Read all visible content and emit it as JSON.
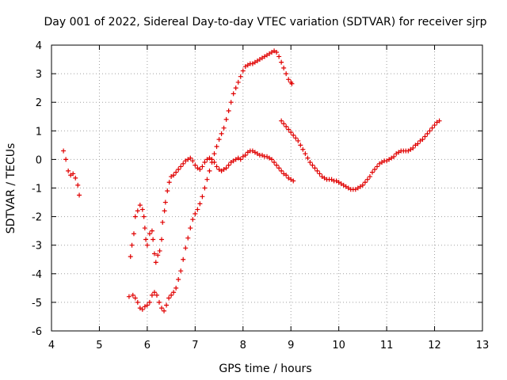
{
  "chart_data": {
    "type": "scatter",
    "title": "Day 001 of 2022, Sidereal Day-to-day VTEC variation (SDTVAR) for receiver sjrp",
    "xlabel": "GPS time / hours",
    "ylabel": "SDTVAR / TECUs",
    "xlim": [
      4,
      13
    ],
    "ylim": [
      -6,
      4
    ],
    "xticks": [
      4,
      5,
      6,
      7,
      8,
      9,
      10,
      11,
      12,
      13
    ],
    "yticks": [
      -6,
      -5,
      -4,
      -3,
      -2,
      -1,
      0,
      1,
      2,
      3,
      4
    ],
    "grid": true,
    "marker": "plus",
    "color": "#e00000",
    "series": [
      {
        "points": [
          [
            4.25,
            0.3
          ],
          [
            4.3,
            0.0
          ],
          [
            4.35,
            -0.4
          ],
          [
            4.4,
            -0.55
          ],
          [
            4.45,
            -0.5
          ],
          [
            4.5,
            -0.65
          ],
          [
            4.55,
            -0.9
          ],
          [
            4.58,
            -1.25
          ]
        ]
      },
      {
        "points": [
          [
            5.65,
            -3.4
          ],
          [
            5.68,
            -3.0
          ],
          [
            5.72,
            -2.6
          ],
          [
            5.75,
            -2.0
          ],
          [
            5.8,
            -1.8
          ],
          [
            5.85,
            -1.6
          ],
          [
            5.9,
            -1.75
          ],
          [
            5.93,
            -2.0
          ],
          [
            5.95,
            -2.4
          ],
          [
            5.97,
            -2.8
          ],
          [
            6.0,
            -3.0
          ],
          [
            6.05,
            -2.6
          ],
          [
            6.1,
            -2.5
          ],
          [
            6.12,
            -2.8
          ],
          [
            6.15,
            -3.3
          ],
          [
            6.18,
            -3.6
          ],
          [
            6.22,
            -3.35
          ],
          [
            6.26,
            -3.2
          ],
          [
            6.3,
            -2.8
          ],
          [
            6.32,
            -2.2
          ],
          [
            6.36,
            -1.8
          ],
          [
            6.38,
            -1.5
          ],
          [
            6.42,
            -1.1
          ],
          [
            6.46,
            -0.8
          ],
          [
            6.5,
            -0.6
          ],
          [
            6.55,
            -0.55
          ],
          [
            6.6,
            -0.45
          ],
          [
            6.65,
            -0.35
          ],
          [
            6.7,
            -0.25
          ],
          [
            6.75,
            -0.15
          ],
          [
            6.8,
            -0.05
          ],
          [
            6.85,
            0.0
          ],
          [
            6.9,
            0.05
          ],
          [
            6.95,
            -0.05
          ],
          [
            7.0,
            -0.2
          ],
          [
            7.05,
            -0.3
          ],
          [
            7.1,
            -0.35
          ],
          [
            7.15,
            -0.25
          ],
          [
            7.2,
            -0.1
          ],
          [
            7.25,
            0.0
          ],
          [
            7.3,
            0.05
          ],
          [
            7.35,
            0.0
          ],
          [
            7.4,
            -0.1
          ],
          [
            7.45,
            -0.25
          ],
          [
            7.5,
            -0.35
          ],
          [
            7.55,
            -0.4
          ],
          [
            7.6,
            -0.35
          ],
          [
            7.65,
            -0.3
          ],
          [
            7.7,
            -0.2
          ],
          [
            7.75,
            -0.1
          ],
          [
            7.8,
            -0.05
          ],
          [
            7.85,
            0.0
          ],
          [
            7.9,
            0.05
          ],
          [
            7.95,
            0.0
          ],
          [
            8.0,
            0.1
          ],
          [
            8.05,
            0.15
          ],
          [
            8.1,
            0.25
          ],
          [
            8.15,
            0.3
          ],
          [
            8.2,
            0.3
          ],
          [
            8.25,
            0.25
          ],
          [
            8.3,
            0.2
          ],
          [
            8.35,
            0.15
          ],
          [
            8.4,
            0.15
          ],
          [
            8.45,
            0.1
          ],
          [
            8.5,
            0.1
          ],
          [
            8.55,
            0.05
          ],
          [
            8.6,
            0.0
          ],
          [
            8.65,
            -0.1
          ],
          [
            8.7,
            -0.2
          ],
          [
            8.75,
            -0.3
          ],
          [
            8.8,
            -0.4
          ],
          [
            8.85,
            -0.5
          ],
          [
            8.9,
            -0.55
          ],
          [
            8.95,
            -0.65
          ],
          [
            9.0,
            -0.7
          ],
          [
            9.05,
            -0.75
          ]
        ]
      },
      {
        "points": [
          [
            5.62,
            -4.8
          ],
          [
            5.7,
            -4.75
          ],
          [
            5.75,
            -4.85
          ],
          [
            5.8,
            -5.0
          ],
          [
            5.85,
            -5.2
          ],
          [
            5.9,
            -5.25
          ],
          [
            5.95,
            -5.15
          ],
          [
            6.0,
            -5.1
          ],
          [
            6.05,
            -5.0
          ],
          [
            6.1,
            -4.75
          ],
          [
            6.15,
            -4.65
          ],
          [
            6.2,
            -4.75
          ],
          [
            6.25,
            -5.0
          ],
          [
            6.3,
            -5.2
          ],
          [
            6.35,
            -5.3
          ],
          [
            6.4,
            -5.1
          ],
          [
            6.45,
            -4.85
          ],
          [
            6.5,
            -4.75
          ],
          [
            6.55,
            -4.65
          ],
          [
            6.6,
            -4.5
          ],
          [
            6.65,
            -4.2
          ],
          [
            6.7,
            -3.9
          ],
          [
            6.75,
            -3.5
          ],
          [
            6.8,
            -3.1
          ],
          [
            6.85,
            -2.75
          ],
          [
            6.9,
            -2.4
          ],
          [
            6.95,
            -2.1
          ],
          [
            7.0,
            -1.9
          ],
          [
            7.05,
            -1.75
          ],
          [
            7.1,
            -1.55
          ],
          [
            7.15,
            -1.3
          ],
          [
            7.2,
            -1.0
          ],
          [
            7.25,
            -0.7
          ],
          [
            7.3,
            -0.4
          ],
          [
            7.35,
            -0.1
          ],
          [
            7.4,
            0.2
          ],
          [
            7.45,
            0.45
          ],
          [
            7.5,
            0.7
          ],
          [
            7.55,
            0.9
          ],
          [
            7.6,
            1.1
          ],
          [
            7.65,
            1.4
          ],
          [
            7.7,
            1.7
          ],
          [
            7.75,
            2.0
          ],
          [
            7.8,
            2.3
          ],
          [
            7.85,
            2.5
          ],
          [
            7.9,
            2.7
          ],
          [
            7.95,
            2.9
          ],
          [
            8.0,
            3.1
          ],
          [
            8.05,
            3.25
          ],
          [
            8.1,
            3.3
          ],
          [
            8.15,
            3.35
          ],
          [
            8.2,
            3.35
          ],
          [
            8.25,
            3.4
          ],
          [
            8.3,
            3.45
          ],
          [
            8.35,
            3.5
          ],
          [
            8.4,
            3.55
          ],
          [
            8.45,
            3.6
          ],
          [
            8.5,
            3.65
          ],
          [
            8.55,
            3.7
          ],
          [
            8.6,
            3.75
          ],
          [
            8.65,
            3.8
          ],
          [
            8.7,
            3.75
          ],
          [
            8.75,
            3.6
          ],
          [
            8.8,
            3.4
          ],
          [
            8.85,
            3.2
          ],
          [
            8.9,
            3.0
          ],
          [
            8.95,
            2.8
          ],
          [
            9.0,
            2.7
          ],
          [
            9.02,
            2.65
          ]
        ]
      },
      {
        "points": [
          [
            8.8,
            1.35
          ],
          [
            8.85,
            1.25
          ],
          [
            8.9,
            1.15
          ],
          [
            8.95,
            1.05
          ],
          [
            9.0,
            0.95
          ],
          [
            9.05,
            0.85
          ],
          [
            9.1,
            0.75
          ],
          [
            9.15,
            0.65
          ],
          [
            9.2,
            0.5
          ],
          [
            9.25,
            0.35
          ],
          [
            9.3,
            0.2
          ],
          [
            9.35,
            0.05
          ],
          [
            9.4,
            -0.1
          ],
          [
            9.45,
            -0.2
          ],
          [
            9.5,
            -0.3
          ],
          [
            9.55,
            -0.4
          ],
          [
            9.6,
            -0.5
          ],
          [
            9.65,
            -0.6
          ],
          [
            9.7,
            -0.65
          ],
          [
            9.75,
            -0.7
          ],
          [
            9.8,
            -0.7
          ],
          [
            9.85,
            -0.7
          ],
          [
            9.9,
            -0.75
          ],
          [
            9.95,
            -0.75
          ],
          [
            10.0,
            -0.8
          ],
          [
            10.05,
            -0.85
          ],
          [
            10.1,
            -0.9
          ],
          [
            10.15,
            -0.95
          ],
          [
            10.2,
            -1.0
          ],
          [
            10.25,
            -1.05
          ],
          [
            10.3,
            -1.05
          ],
          [
            10.35,
            -1.05
          ],
          [
            10.4,
            -1.0
          ],
          [
            10.45,
            -0.95
          ],
          [
            10.5,
            -0.9
          ],
          [
            10.55,
            -0.8
          ],
          [
            10.6,
            -0.7
          ],
          [
            10.65,
            -0.6
          ],
          [
            10.7,
            -0.45
          ],
          [
            10.75,
            -0.35
          ],
          [
            10.8,
            -0.25
          ],
          [
            10.85,
            -0.15
          ],
          [
            10.9,
            -0.1
          ],
          [
            10.95,
            -0.05
          ],
          [
            11.0,
            -0.05
          ],
          [
            11.05,
            0.0
          ],
          [
            11.1,
            0.05
          ],
          [
            11.15,
            0.1
          ],
          [
            11.2,
            0.2
          ],
          [
            11.25,
            0.25
          ],
          [
            11.3,
            0.3
          ],
          [
            11.35,
            0.3
          ],
          [
            11.4,
            0.3
          ],
          [
            11.45,
            0.3
          ],
          [
            11.5,
            0.35
          ],
          [
            11.55,
            0.4
          ],
          [
            11.6,
            0.5
          ],
          [
            11.65,
            0.55
          ],
          [
            11.7,
            0.65
          ],
          [
            11.75,
            0.7
          ],
          [
            11.8,
            0.8
          ],
          [
            11.85,
            0.9
          ],
          [
            11.9,
            1.0
          ],
          [
            11.95,
            1.1
          ],
          [
            12.0,
            1.2
          ],
          [
            12.05,
            1.3
          ],
          [
            12.1,
            1.35
          ]
        ]
      }
    ]
  }
}
